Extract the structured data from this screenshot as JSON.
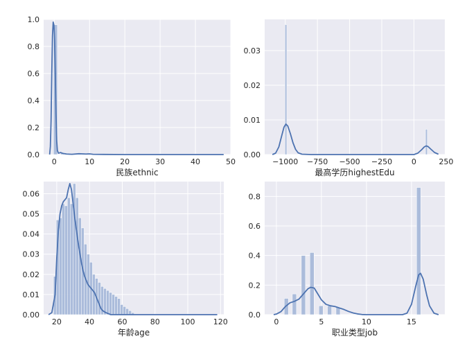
{
  "chart_data": [
    {
      "type": "histogram+kde",
      "xlabel": "民族ethnic",
      "ylabel": "",
      "xlim": [
        -3,
        50
      ],
      "ylim": [
        0,
        1.0
      ],
      "xticks": [
        0,
        10,
        20,
        30,
        40,
        50
      ],
      "yticks": [
        0.0,
        0.2,
        0.4,
        0.6,
        0.8,
        1.0
      ],
      "xtick_labels": [
        "0",
        "10",
        "20",
        "30",
        "40",
        "50"
      ],
      "ytick_labels": [
        "0.0",
        "0.2",
        "0.4",
        "0.6",
        "0.8",
        "1.0"
      ],
      "bars": [
        {
          "x0": -0.2,
          "x1": 0.9,
          "height": 0.96
        },
        {
          "x0": 1.8,
          "x1": 2.8,
          "height": 0.012
        },
        {
          "x0": 6.5,
          "x1": 7.5,
          "height": 0.004
        },
        {
          "x0": 9.2,
          "x1": 10.2,
          "height": 0.004
        }
      ],
      "kde": [
        [
          -1.3,
          0.0
        ],
        [
          -1.1,
          0.06
        ],
        [
          -0.9,
          0.25
        ],
        [
          -0.7,
          0.6
        ],
        [
          -0.5,
          0.88
        ],
        [
          -0.3,
          0.98
        ],
        [
          -0.1,
          0.96
        ],
        [
          0.1,
          0.85
        ],
        [
          0.3,
          0.6
        ],
        [
          0.5,
          0.3
        ],
        [
          0.7,
          0.1
        ],
        [
          0.9,
          0.03
        ],
        [
          1.2,
          0.01
        ],
        [
          1.8,
          0.015
        ],
        [
          2.5,
          0.008
        ],
        [
          3.5,
          0.004
        ],
        [
          5,
          0.002
        ],
        [
          7,
          0.006
        ],
        [
          9,
          0.004
        ],
        [
          10,
          0.005
        ],
        [
          11,
          0.002
        ],
        [
          14,
          0.001
        ],
        [
          20,
          0.0
        ],
        [
          30,
          0.0
        ],
        [
          40,
          0.0
        ],
        [
          48,
          0.0
        ]
      ]
    },
    {
      "type": "histogram+kde",
      "xlabel": "最高学历highestEdu",
      "ylabel": "",
      "xlim": [
        -1160,
        240
      ],
      "ylim": [
        0,
        0.039
      ],
      "xticks": [
        -1000,
        -750,
        -500,
        -250,
        0,
        250
      ],
      "yticks": [
        0.0,
        0.01,
        0.02,
        0.03
      ],
      "xtick_labels": [
        "−1000",
        "−750",
        "−500",
        "−250",
        "0",
        "250"
      ],
      "ytick_labels": [
        "0.00",
        "0.01",
        "0.02",
        "0.03"
      ],
      "bars": [
        {
          "x0": -1002,
          "x1": -988,
          "height": 0.0375
        },
        {
          "x0": 90,
          "x1": 104,
          "height": 0.0073
        }
      ],
      "kde": [
        [
          -1100,
          0.0
        ],
        [
          -1075,
          0.0004
        ],
        [
          -1050,
          0.0022
        ],
        [
          -1025,
          0.0058
        ],
        [
          -1010,
          0.0079
        ],
        [
          -995,
          0.0088
        ],
        [
          -980,
          0.0082
        ],
        [
          -960,
          0.006
        ],
        [
          -940,
          0.0034
        ],
        [
          -920,
          0.0015
        ],
        [
          -900,
          0.0005
        ],
        [
          -870,
          0.0001
        ],
        [
          -800,
          0.0
        ],
        [
          -500,
          0.0
        ],
        [
          -200,
          0.0
        ],
        [
          0,
          0.0
        ],
        [
          30,
          0.0004
        ],
        [
          60,
          0.0014
        ],
        [
          80,
          0.0022
        ],
        [
          95,
          0.0025
        ],
        [
          110,
          0.0023
        ],
        [
          130,
          0.0016
        ],
        [
          160,
          0.0006
        ],
        [
          190,
          0.0001
        ]
      ]
    },
    {
      "type": "histogram+kde",
      "xlabel": "年龄age",
      "ylabel": "",
      "xlim": [
        12,
        122
      ],
      "ylim": [
        0,
        0.066
      ],
      "xticks": [
        20,
        40,
        60,
        80,
        100,
        120
      ],
      "yticks": [
        0.0,
        0.01,
        0.02,
        0.03,
        0.04,
        0.05,
        0.06
      ],
      "xtick_labels": [
        "20",
        "40",
        "60",
        "80",
        "100",
        "120"
      ],
      "ytick_labels": [
        "0.00",
        "0.01",
        "0.02",
        "0.03",
        "0.04",
        "0.05",
        "0.06"
      ],
      "bar_x0": 18,
      "bar_width": 1.7,
      "bar_heights": [
        0.019,
        0.047,
        0.048,
        0.055,
        0.054,
        0.058,
        0.055,
        0.065,
        0.058,
        0.048,
        0.043,
        0.035,
        0.03,
        0.026,
        0.02,
        0.018,
        0.016,
        0.014,
        0.013,
        0.012,
        0.011,
        0.01,
        0.009,
        0.008,
        0.005,
        0.004,
        0.003,
        0.002,
        0.001
      ],
      "kde": [
        [
          15,
          0.0
        ],
        [
          17,
          0.001
        ],
        [
          19,
          0.01
        ],
        [
          20,
          0.028
        ],
        [
          21,
          0.042
        ],
        [
          22,
          0.05
        ],
        [
          23,
          0.054
        ],
        [
          24,
          0.056
        ],
        [
          25,
          0.057
        ],
        [
          26,
          0.058
        ],
        [
          27,
          0.062
        ],
        [
          28,
          0.065
        ],
        [
          29,
          0.062
        ],
        [
          30,
          0.055
        ],
        [
          31,
          0.048
        ],
        [
          32,
          0.042
        ],
        [
          33,
          0.036
        ],
        [
          34,
          0.031
        ],
        [
          35,
          0.026
        ],
        [
          36,
          0.022
        ],
        [
          37,
          0.019
        ],
        [
          38,
          0.017
        ],
        [
          39,
          0.015
        ],
        [
          40,
          0.014
        ],
        [
          41,
          0.013
        ],
        [
          42,
          0.012
        ],
        [
          43,
          0.011
        ],
        [
          44,
          0.009
        ],
        [
          45,
          0.007
        ],
        [
          46,
          0.005
        ],
        [
          47,
          0.003
        ],
        [
          48,
          0.002
        ],
        [
          50,
          0.001
        ],
        [
          53,
          0.0
        ],
        [
          60,
          0.0
        ],
        [
          80,
          0.0
        ],
        [
          100,
          0.0
        ],
        [
          118,
          0.0
        ]
      ]
    },
    {
      "type": "histogram+kde",
      "xlabel": "职业类型job",
      "ylabel": "",
      "xlim": [
        -1.3,
        18.7
      ],
      "ylim": [
        0,
        0.9
      ],
      "xticks": [
        0,
        5,
        10,
        15
      ],
      "yticks": [
        0.0,
        0.2,
        0.4,
        0.6,
        0.8
      ],
      "xtick_labels": [
        "0",
        "5",
        "10",
        "15"
      ],
      "ytick_labels": [
        "0.0",
        "0.2",
        "0.4",
        "0.6",
        "0.8"
      ],
      "bar_width": 0.46,
      "bars": [
        {
          "x": 1.1,
          "height": 0.11
        },
        {
          "x": 2.0,
          "height": 0.14
        },
        {
          "x": 3.0,
          "height": 0.4
        },
        {
          "x": 3.95,
          "height": 0.42
        },
        {
          "x": 4.95,
          "height": 0.06
        },
        {
          "x": 5.9,
          "height": 0.06
        },
        {
          "x": 6.85,
          "height": 0.05
        },
        {
          "x": 15.8,
          "height": 0.86
        }
      ],
      "kde": [
        [
          -0.3,
          0.0
        ],
        [
          0,
          0.004
        ],
        [
          0.5,
          0.02
        ],
        [
          1,
          0.055
        ],
        [
          1.5,
          0.08
        ],
        [
          2,
          0.09
        ],
        [
          2.5,
          0.105
        ],
        [
          3,
          0.14
        ],
        [
          3.5,
          0.175
        ],
        [
          3.8,
          0.185
        ],
        [
          4.2,
          0.18
        ],
        [
          4.6,
          0.14
        ],
        [
          5,
          0.1
        ],
        [
          5.5,
          0.07
        ],
        [
          6,
          0.06
        ],
        [
          6.5,
          0.055
        ],
        [
          7,
          0.045
        ],
        [
          7.5,
          0.035
        ],
        [
          8,
          0.022
        ],
        [
          8.5,
          0.012
        ],
        [
          9,
          0.005
        ],
        [
          9.5,
          0.001
        ],
        [
          10,
          0.0
        ],
        [
          14,
          0.0
        ],
        [
          14.5,
          0.01
        ],
        [
          15,
          0.07
        ],
        [
          15.5,
          0.2
        ],
        [
          15.8,
          0.27
        ],
        [
          16,
          0.28
        ],
        [
          16.3,
          0.24
        ],
        [
          16.7,
          0.13
        ],
        [
          17,
          0.06
        ],
        [
          17.5,
          0.01
        ],
        [
          18,
          0.0
        ]
      ]
    }
  ],
  "colors": {
    "background": "#eaeaf2",
    "grid": "#ffffff",
    "bar_fill": "#a8b9d9",
    "kde_line": "#4c72b0",
    "text": "#262626"
  }
}
